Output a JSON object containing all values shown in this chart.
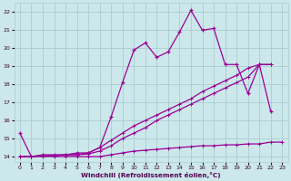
{
  "xlabel": "Windchill (Refroidissement éolien,°C)",
  "background_color": "#cce8ea",
  "grid_color": "#aacdd0",
  "line_color": "#990099",
  "x": [
    0,
    1,
    2,
    3,
    4,
    5,
    6,
    7,
    8,
    9,
    10,
    11,
    12,
    13,
    14,
    15,
    16,
    17,
    18,
    19,
    20,
    21,
    22,
    23
  ],
  "y_main": [
    15.3,
    14.0,
    14.1,
    14.1,
    14.1,
    14.2,
    14.2,
    14.5,
    16.2,
    18.1,
    19.9,
    20.3,
    19.5,
    19.8,
    20.9,
    22.1,
    21.0,
    21.1,
    19.1,
    19.1,
    17.5,
    19.1,
    16.5,
    null
  ],
  "y_diag1": [
    14.0,
    14.0,
    14.05,
    14.05,
    14.1,
    14.1,
    14.2,
    14.5,
    14.9,
    15.3,
    15.7,
    16.0,
    16.3,
    16.6,
    16.9,
    17.2,
    17.6,
    17.9,
    18.2,
    18.5,
    18.9,
    19.1,
    19.1,
    null
  ],
  "y_diag2": [
    14.0,
    14.0,
    14.05,
    14.05,
    14.1,
    14.1,
    14.15,
    14.3,
    14.6,
    15.0,
    15.3,
    15.6,
    16.0,
    16.3,
    16.6,
    16.9,
    17.2,
    17.5,
    17.8,
    18.1,
    18.4,
    19.1,
    19.1,
    null
  ],
  "y_flat": [
    14.0,
    14.0,
    14.0,
    14.0,
    14.0,
    14.0,
    14.0,
    14.0,
    14.1,
    14.2,
    14.3,
    14.35,
    14.4,
    14.45,
    14.5,
    14.55,
    14.6,
    14.6,
    14.65,
    14.65,
    14.7,
    14.7,
    14.8,
    14.8
  ],
  "ylim": [
    13.7,
    22.5
  ],
  "xlim": [
    -0.5,
    23.5
  ],
  "yticks": [
    14,
    15,
    16,
    17,
    18,
    19,
    20,
    21,
    22
  ],
  "xticks": [
    0,
    1,
    2,
    3,
    4,
    5,
    6,
    7,
    8,
    9,
    10,
    11,
    12,
    13,
    14,
    15,
    16,
    17,
    18,
    19,
    20,
    21,
    22,
    23
  ]
}
